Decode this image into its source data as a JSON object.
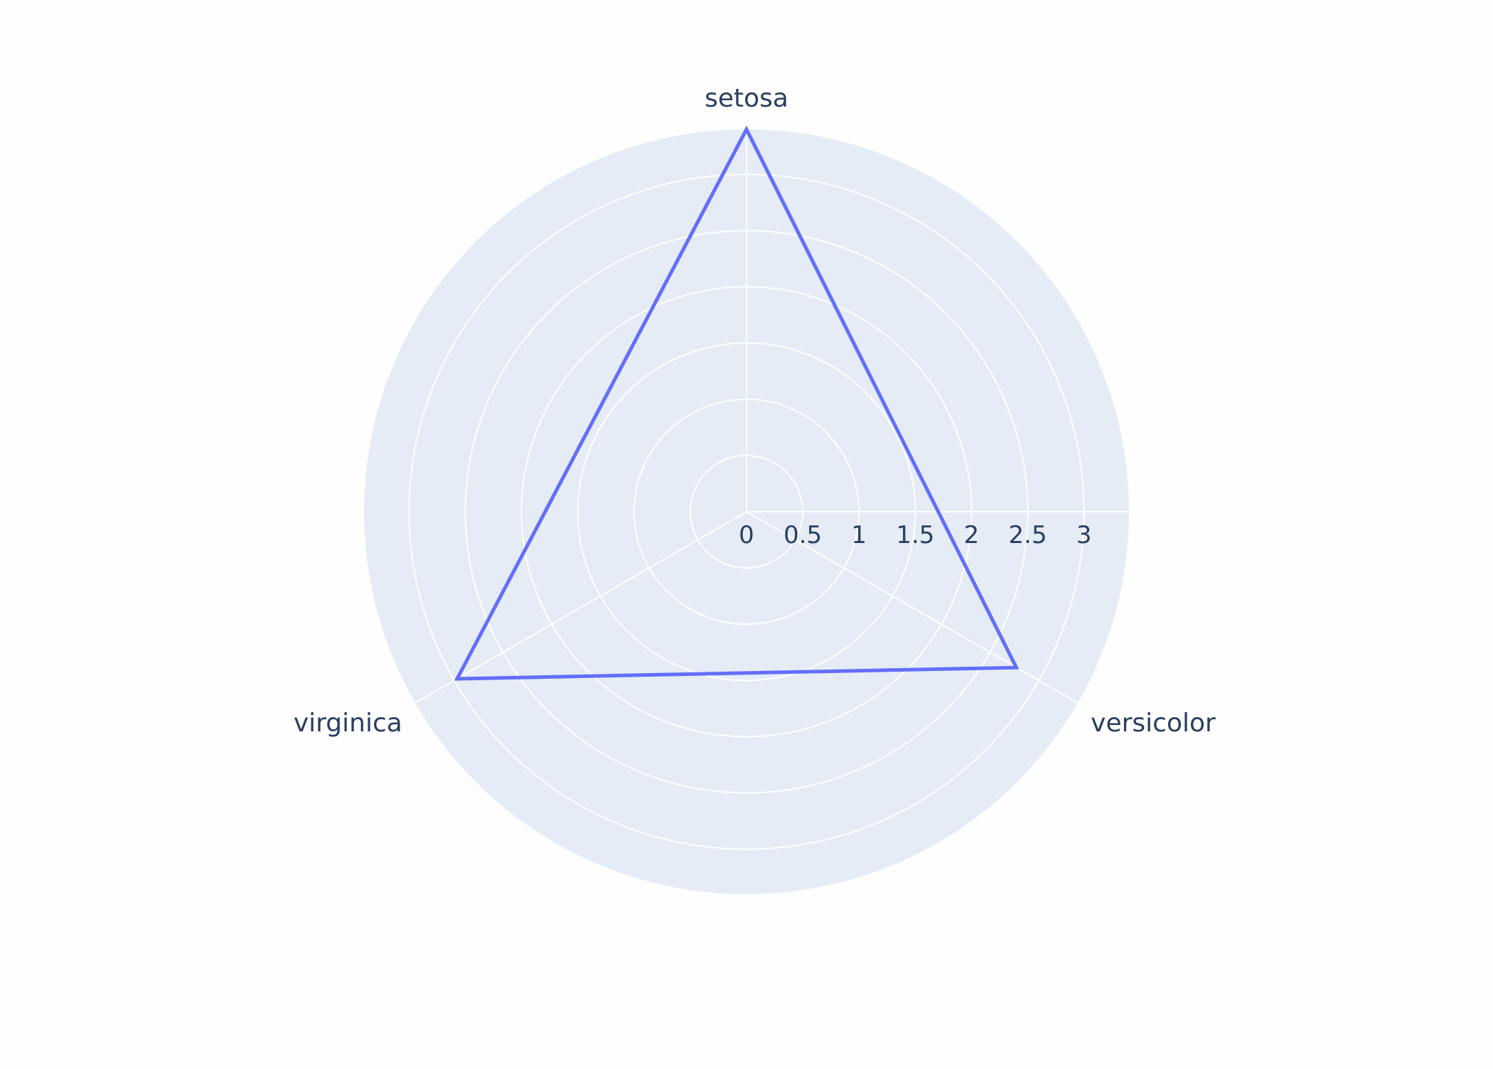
{
  "chart_data": {
    "type": "radar",
    "categories": [
      "setosa",
      "versicolor",
      "virginica"
    ],
    "series": [
      {
        "values": [
          3.4,
          2.77,
          2.97
        ]
      }
    ],
    "radial_ticks": [
      0,
      0.5,
      1,
      1.5,
      2,
      2.5,
      3
    ],
    "radial_range": [
      0,
      3.4
    ],
    "angular_direction": "clockwise",
    "first_axis_direction": "top",
    "grid": true,
    "legend": "none",
    "colors": {
      "polar_background": "#e5ecf6",
      "grid": "#ffffff",
      "series_line": "#636efa",
      "text": "#2a3f5f",
      "paper": "#fefefe"
    }
  }
}
